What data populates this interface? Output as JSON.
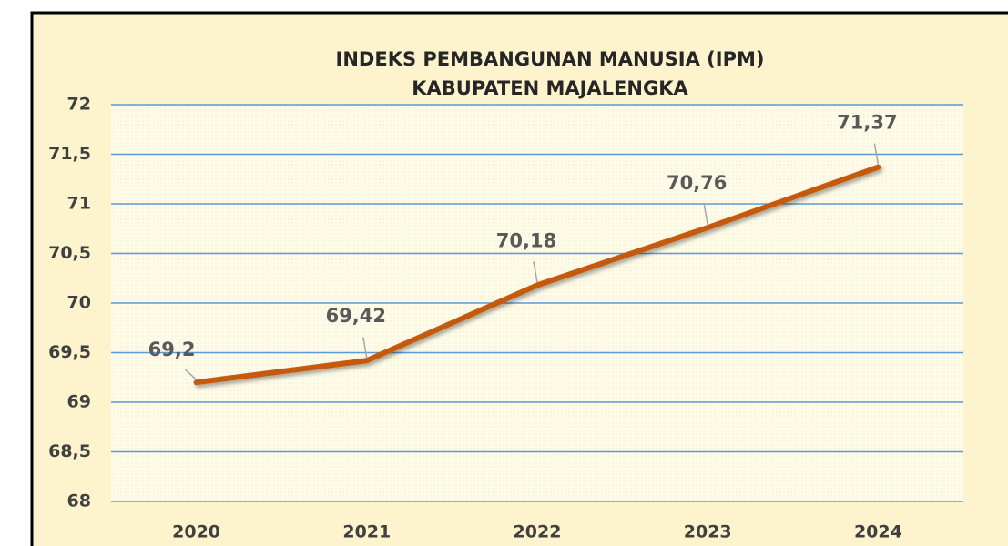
{
  "chart_data": {
    "type": "line",
    "title": [
      "INDEKS PEMBANGUNAN MANUSIA (IPM)",
      "KABUPATEN MAJALENGKA"
    ],
    "categories": [
      "2020",
      "2021",
      "2022",
      "2023",
      "2024"
    ],
    "series": [
      {
        "name": "IPM",
        "color": "#c55a11",
        "values": [
          69.2,
          69.42,
          70.18,
          70.76,
          71.37
        ],
        "value_labels": [
          "69,2",
          "69,42",
          "70,18",
          "70,76",
          "71,37"
        ]
      }
    ],
    "ylim": [
      68,
      72
    ],
    "yticks": [
      68,
      {
        "value": 68.5,
        "label": "68,5"
      },
      69,
      {
        "value": 69.5,
        "label": "69,5"
      },
      70,
      {
        "value": 70.5,
        "label": "70,5"
      },
      71,
      {
        "value": 71.5,
        "label": "71,5"
      },
      72
    ],
    "grid": true
  }
}
